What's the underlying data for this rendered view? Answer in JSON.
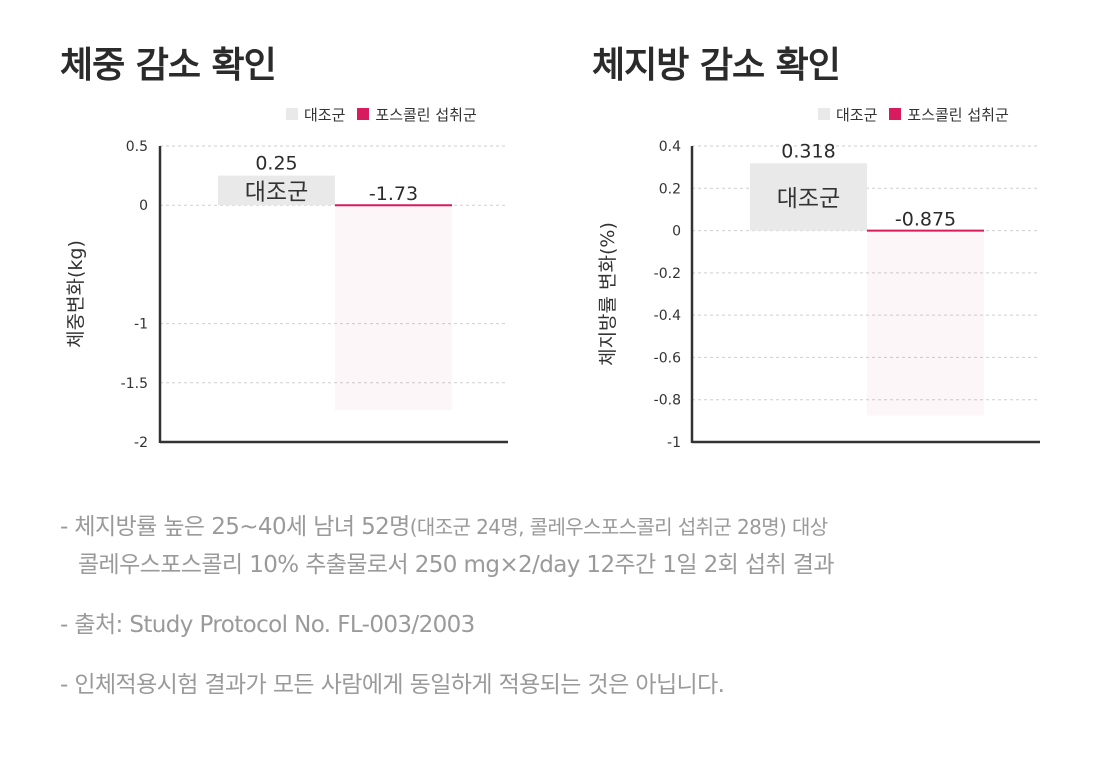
{
  "legend": {
    "control": "대조군",
    "treatment": "포스콜린 섭취군"
  },
  "colors": {
    "control": "#e9e9e9",
    "treatment": "#d81b5c",
    "axis": "#333333",
    "grid": "#cfcfcf"
  },
  "chart_data": [
    {
      "type": "bar",
      "title": "체중 감소 확인",
      "ylabel": "체중변화(kg)",
      "xlabel": "",
      "ylim": [
        -2,
        0.5
      ],
      "yticks": [
        0.5,
        0,
        -1,
        -1.5,
        -2
      ],
      "ytick_labels": [
        "0.5",
        "0",
        "-1",
        "-1.5",
        "-2"
      ],
      "grid": true,
      "legend_position": "top-right",
      "categories": [
        "대조군",
        "포스콜린 섭취군"
      ],
      "series": [
        {
          "name": "대조군",
          "values": [
            0.25,
            null
          ]
        },
        {
          "name": "포스콜린 섭취군",
          "values": [
            null,
            -1.73
          ]
        }
      ],
      "data_labels": [
        "0.25",
        "-1.73"
      ],
      "bar_text": "대조군"
    },
    {
      "type": "bar",
      "title": "체지방 감소 확인",
      "ylabel": "체지방률 변화(%)",
      "xlabel": "",
      "ylim": [
        -1,
        0.4
      ],
      "yticks": [
        0.4,
        0.2,
        0,
        -0.2,
        -0.4,
        -0.6,
        -0.8,
        -1
      ],
      "ytick_labels": [
        "0.4",
        "0.2",
        "0",
        "-0.2",
        "-0.4",
        "-0.6",
        "-0.8",
        "-1"
      ],
      "grid": true,
      "legend_position": "top-right",
      "categories": [
        "대조군",
        "포스콜린 섭취군"
      ],
      "series": [
        {
          "name": "대조군",
          "values": [
            0.318,
            null
          ]
        },
        {
          "name": "포스콜린 섭취군",
          "values": [
            null,
            -0.875
          ]
        }
      ],
      "data_labels": [
        "0.318",
        "-0.875"
      ],
      "bar_text": "대조군"
    }
  ],
  "notes": {
    "line1a": "- 체지방률 높은 25~40세 남녀 52명",
    "line1b": "(대조군 24명, 콜레우스포스콜리 섭취군 28명) 대상",
    "line2": "콜레우스포스콜리 10% 추출물로서 250 mg×2/day 12주간 1일 2회 섭취 결과",
    "line3": "- 출처: Study Protocol No. FL-003/2003",
    "line4": "- 인체적용시험 결과가 모든 사람에게 동일하게 적용되는 것은 아닙니다."
  }
}
